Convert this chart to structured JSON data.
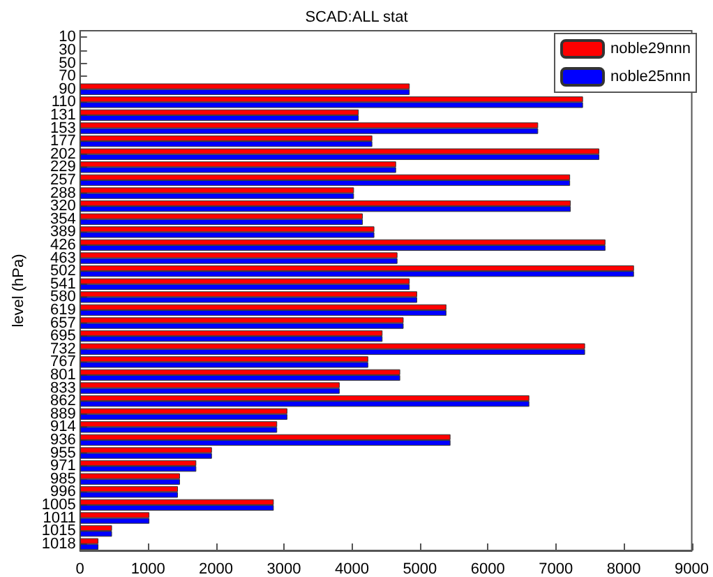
{
  "chart_data": {
    "type": "bar",
    "orientation": "horizontal",
    "title": "SCAD:ALL stat",
    "ylabel": "level (hPa)",
    "categories": [
      "10",
      "30",
      "50",
      "70",
      "90",
      "110",
      "131",
      "153",
      "177",
      "202",
      "229",
      "257",
      "288",
      "320",
      "354",
      "389",
      "426",
      "463",
      "502",
      "541",
      "580",
      "619",
      "657",
      "695",
      "732",
      "767",
      "801",
      "833",
      "862",
      "889",
      "914",
      "936",
      "955",
      "971",
      "985",
      "996",
      "1005",
      "1011",
      "1015",
      "1018"
    ],
    "series": [
      {
        "name": "noble29nnn",
        "color": "#ff0000",
        "values": [
          null,
          null,
          null,
          null,
          4850,
          7400,
          4100,
          6740,
          4300,
          7640,
          4650,
          7210,
          4030,
          7220,
          4160,
          4330,
          7730,
          4670,
          8150,
          4850,
          4960,
          5390,
          4760,
          4450,
          7430,
          4240,
          4710,
          3820,
          6610,
          3050,
          2900,
          5450,
          1940,
          1710,
          1470,
          1440,
          2850,
          1020,
          470,
          270
        ]
      },
      {
        "name": "noble25nnn",
        "color": "#0000ff",
        "values": [
          null,
          null,
          null,
          null,
          4850,
          7400,
          4100,
          6740,
          4300,
          7640,
          4650,
          7210,
          4030,
          7220,
          4160,
          4330,
          7730,
          4670,
          8150,
          4850,
          4960,
          5390,
          4760,
          4450,
          7430,
          4240,
          4710,
          3820,
          6610,
          3050,
          2900,
          5450,
          1940,
          1710,
          1470,
          1440,
          2850,
          1020,
          470,
          270
        ]
      }
    ],
    "xlim": [
      0,
      9000
    ],
    "xticks": [
      0,
      1000,
      2000,
      3000,
      4000,
      5000,
      6000,
      7000,
      8000,
      9000
    ],
    "grid": false,
    "legend": "top right"
  }
}
